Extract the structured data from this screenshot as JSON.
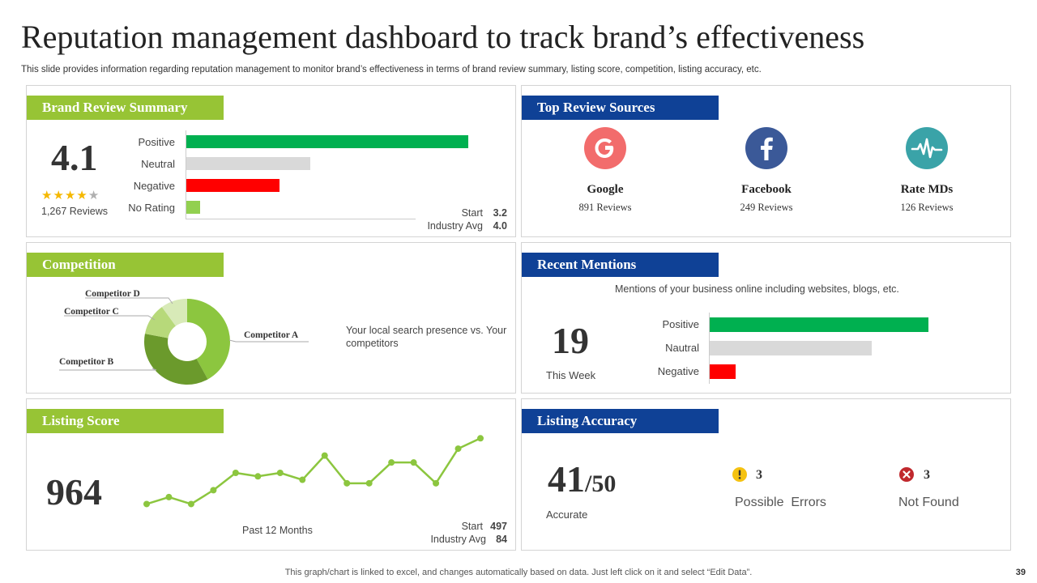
{
  "title": "Reputation management dashboard to track brand’s effectiveness",
  "subtitle": "This slide provides information regarding reputation management to monitor brand’s effectiveness in terms of brand review summary, listing score, competition, listing accuracy, etc.",
  "brand_review": {
    "header": "Brand Review Summary",
    "rating": "4.1",
    "stars_filled": 4,
    "stars_total": 5,
    "reviews": "1,267 Reviews",
    "bars": [
      {
        "label": "Positive",
        "value": 100,
        "color": "#00b050"
      },
      {
        "label": "Neutral",
        "value": 44,
        "color": "#d9d9d9"
      },
      {
        "label": "Negative",
        "value": 33,
        "color": "#ff0000"
      },
      {
        "label": "No Rating",
        "value": 5,
        "color": "#92d050"
      }
    ],
    "start_label": "Start",
    "start_value": "3.2",
    "industry_label": "Industry Avg",
    "industry_value": "4.0"
  },
  "top_sources": {
    "header": "Top Review Sources",
    "items": [
      {
        "name": "Google",
        "reviews": "891 Reviews",
        "icon": "google-icon",
        "color": "#f26c6c"
      },
      {
        "name": "Facebook",
        "reviews": "249 Reviews",
        "icon": "facebook-icon",
        "color": "#3b5998"
      },
      {
        "name": "Rate MDs",
        "reviews": "126 Reviews",
        "icon": "heartbeat-icon",
        "color": "#3aa3a8"
      }
    ]
  },
  "competition": {
    "header": "Competition",
    "description": "Your local search presence vs. Your competitors",
    "chart_data": {
      "type": "pie",
      "title": "Competition",
      "categories": [
        "Competitor A",
        "Competitor B",
        "Competitor C",
        "Competitor D"
      ],
      "values": [
        42,
        36,
        12,
        10
      ],
      "colors": [
        "#8cc63f",
        "#6b9a2c",
        "#b7d97a",
        "#d8eab8"
      ]
    }
  },
  "recent_mentions": {
    "header": "Recent Mentions",
    "description": "Mentions of your business online including websites, blogs, etc.",
    "count": "19",
    "period": "This Week",
    "bars": [
      {
        "label": "Positive",
        "value": 100,
        "color": "#00b050"
      },
      {
        "label": "Nautral",
        "value": 74,
        "color": "#d9d9d9"
      },
      {
        "label": "Negative",
        "value": 12,
        "color": "#ff0000"
      }
    ]
  },
  "listing_score": {
    "header": "Listing Score",
    "score": "964",
    "period": "Past 12 Months",
    "start_label": "Start",
    "start_value": "497",
    "industry_label": "Industry Avg",
    "industry_value": "84",
    "chart_data": {
      "type": "line",
      "title": "Listing Score",
      "x": [
        1,
        2,
        3,
        4,
        5,
        6,
        7,
        8,
        9,
        10,
        11,
        12,
        13,
        14,
        15,
        16
      ],
      "values": [
        2,
        4,
        2,
        6,
        11,
        10,
        11,
        9,
        16,
        8,
        8,
        14,
        14,
        8,
        18,
        21
      ],
      "ylim": [
        0,
        22
      ],
      "color": "#8cc63f"
    }
  },
  "listing_accuracy": {
    "header": "Listing Accuracy",
    "accurate_value": "41",
    "accurate_total": "/50",
    "accurate_label": "Accurate",
    "errors_count": "3",
    "errors_label": "Possible  Errors",
    "notfound_count": "3",
    "notfound_label": "Not Found"
  },
  "footer": "This graph/chart is linked to excel, and changes automatically based on data. Just left click on it and select “Edit Data”.",
  "page_number": "39"
}
